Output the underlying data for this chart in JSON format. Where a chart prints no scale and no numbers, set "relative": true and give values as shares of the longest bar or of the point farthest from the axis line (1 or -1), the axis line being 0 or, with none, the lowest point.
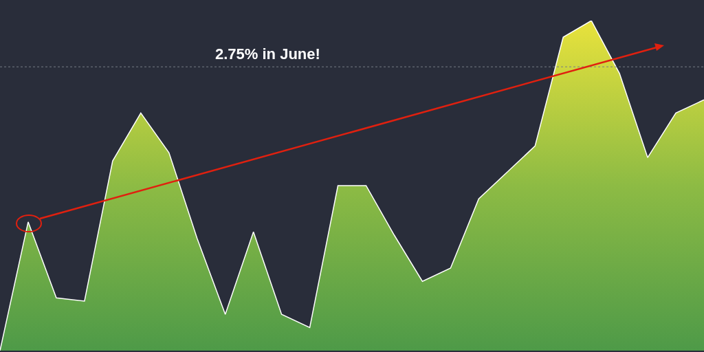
{
  "chart_data": {
    "type": "area",
    "relative": true,
    "categories": [
      null,
      null,
      null,
      null,
      null,
      null,
      null,
      null,
      null,
      null,
      null,
      null,
      null,
      null,
      null,
      null,
      null,
      null,
      null,
      null,
      null,
      null,
      null,
      null,
      null,
      null
    ],
    "series": [
      {
        "color": "#ffffff",
        "values": [
          0,
          0.39,
          0.16,
          0.15,
          0.575,
          0.72,
          0.6,
          0.34,
          0.11,
          0.36,
          0.11,
          0.07,
          0.5,
          0.5,
          0.35,
          0.21,
          0.25,
          0.46,
          0.54,
          0.62,
          0.95,
          1,
          0.84,
          0.585,
          0.72,
          0.76
        ]
      }
    ],
    "ref_lines": [
      {
        "axis": "y",
        "value": 0.86,
        "color": "#777b86",
        "line_style": "dotted"
      }
    ],
    "annotations": [
      "2.75% in June!"
    ]
  }
}
